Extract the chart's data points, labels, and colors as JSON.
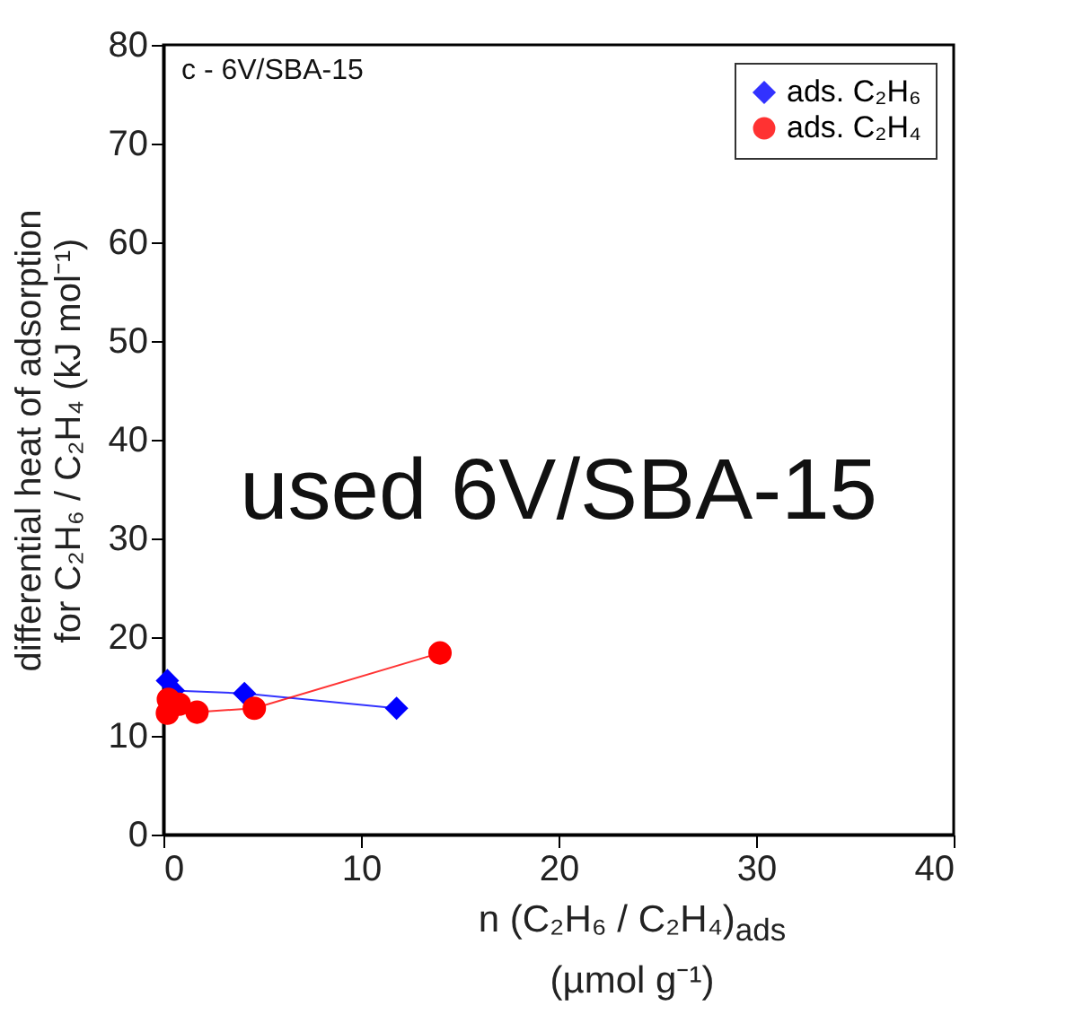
{
  "chart_data": {
    "type": "line",
    "xlabel": "n (C₂H₆ / C₂H₄)$_{ads}$\n(µmol g⁻¹)",
    "ylabel": "differential heat of adsorption\nfor C₂H₆ / C₂H₄ (kJ mol⁻¹)",
    "annotations": [
      "c - 6V/SBA-15",
      "used 6V/SBA-15"
    ],
    "series": [
      {
        "name": "ads. C₂H₆",
        "color": "#0000ff",
        "marker": "diamond",
        "x": [
          0.2,
          0.5,
          4.1,
          11.8
        ],
        "values": [
          15.6,
          14.6,
          14.3,
          12.8
        ]
      },
      {
        "name": "ads. C₂H₄",
        "color": "#ff0000",
        "marker": "circle",
        "x": [
          0.2,
          0.25,
          0.8,
          1.7,
          4.6,
          14.0
        ],
        "values": [
          12.3,
          13.7,
          13.2,
          12.4,
          12.8,
          18.4
        ]
      }
    ],
    "xlim": [
      0,
      40
    ],
    "xticks": [
      0,
      10,
      20,
      30,
      40
    ],
    "ylim": [
      0,
      80
    ],
    "yticks": [
      0,
      10,
      20,
      30,
      40,
      50,
      60,
      70,
      80
    ],
    "grid": false,
    "legend": "top right",
    "line_style": "solid"
  }
}
